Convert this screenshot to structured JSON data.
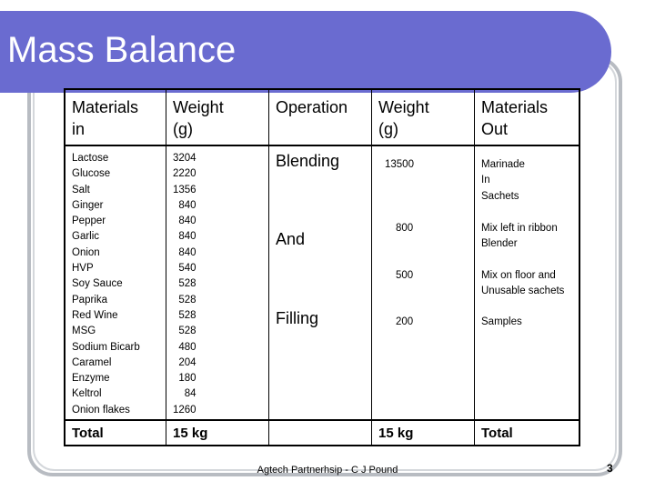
{
  "title": "Mass Balance",
  "table": {
    "headers": [
      "Materials\nin",
      "Weight\n(g)",
      "Operation",
      "Weight\n(g)",
      "Materials\nOut"
    ],
    "materials_in": [
      "Lactose",
      "Glucose",
      "Salt",
      "Ginger",
      "Pepper",
      "Garlic",
      "Onion",
      "HVP",
      "Soy Sauce",
      "Paprika",
      "Red Wine",
      "MSG",
      "Sodium Bicarb",
      "Caramel",
      "Enzyme",
      "Keltrol",
      "Onion flakes"
    ],
    "weights_in": [
      "3204",
      "2220",
      "1356",
      "  840",
      "  840",
      "  840",
      "  840",
      "  540",
      "  528",
      "  528",
      "  528",
      "  528",
      "  480",
      "  204",
      "  180",
      "    84",
      "1260"
    ],
    "operations": [
      "Blending",
      "And",
      "Filling"
    ],
    "weights_out": [
      "13500",
      "800",
      "500",
      "200"
    ],
    "materials_out": [
      "Marinade\nIn\nSachets",
      "Mix left in ribbon\nBlender",
      "Mix on floor and\nUnusable sachets",
      "Samples"
    ],
    "footer_row": [
      "Total",
      "15 kg",
      "",
      "15 kg",
      "Total"
    ]
  },
  "footer": "Agtech Partnerhsip - C J Pound",
  "page_number": "3"
}
